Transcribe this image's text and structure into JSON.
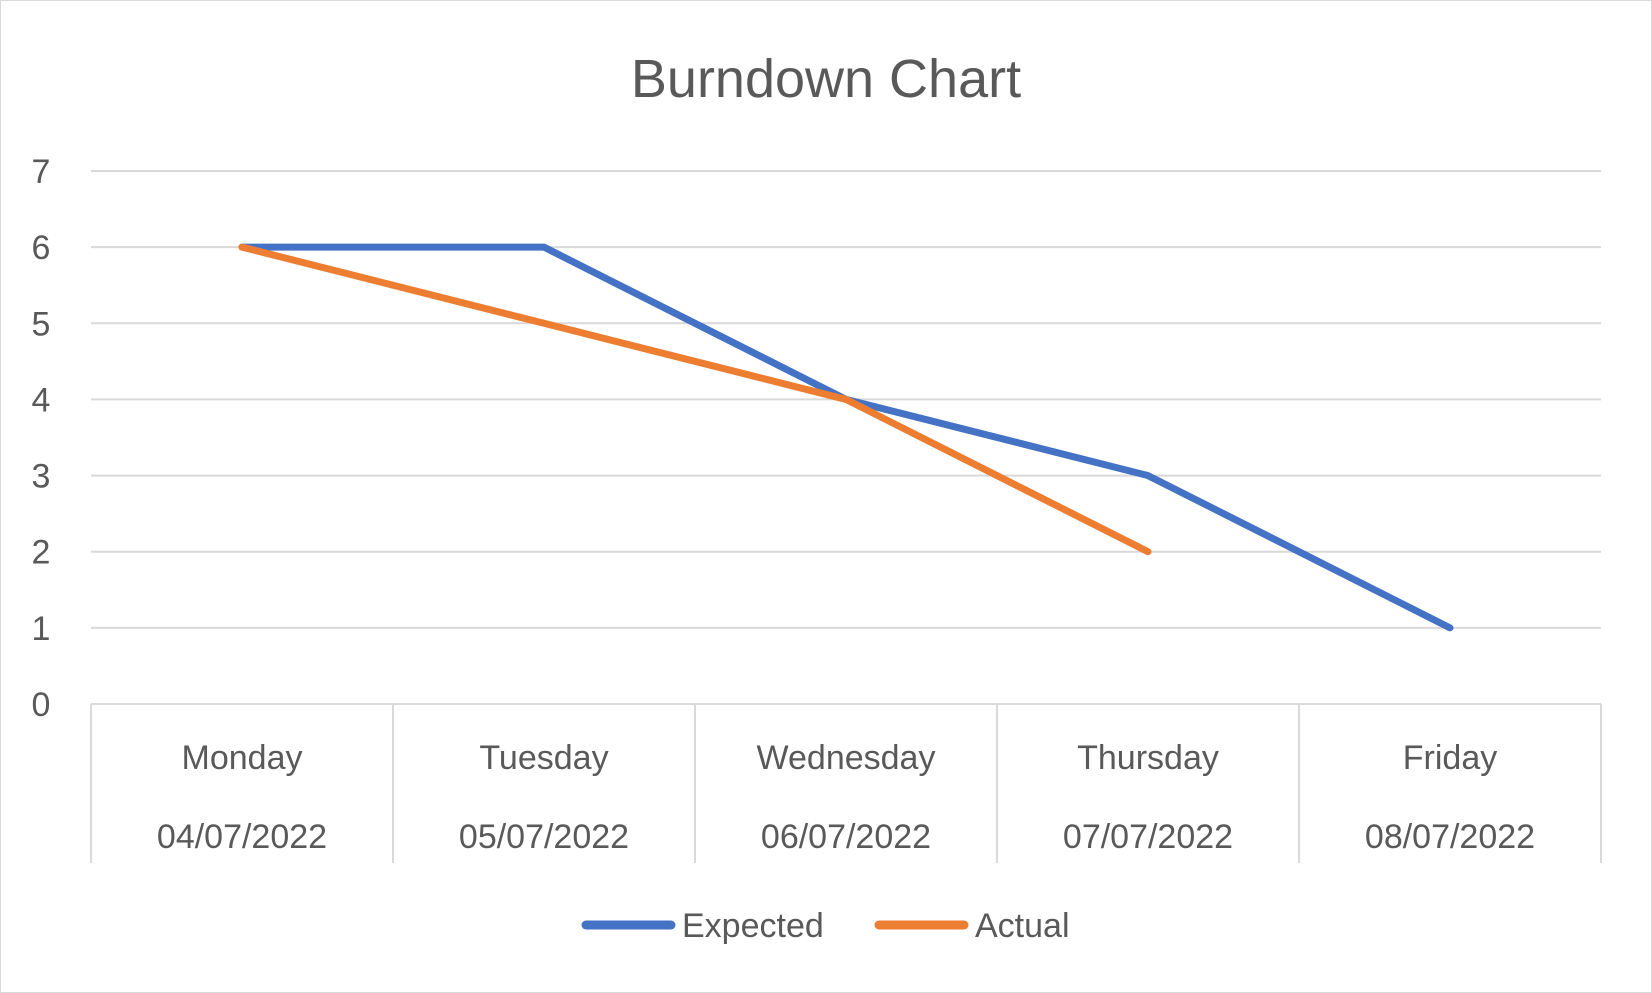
{
  "chart_data": {
    "type": "line",
    "title": "Burndown Chart",
    "xlabel": "",
    "ylabel": "",
    "ylim": [
      0,
      7
    ],
    "yticks": [
      0,
      1,
      2,
      3,
      4,
      5,
      6,
      7
    ],
    "grid": true,
    "legend_position": "bottom",
    "categories": [
      {
        "day": "Monday",
        "date": "04/07/2022"
      },
      {
        "day": "Tuesday",
        "date": "05/07/2022"
      },
      {
        "day": "Wednesday",
        "date": "06/07/2022"
      },
      {
        "day": "Thursday",
        "date": "07/07/2022"
      },
      {
        "day": "Friday",
        "date": "08/07/2022"
      }
    ],
    "series": [
      {
        "name": "Expected",
        "color": "#4472C4",
        "values": [
          6,
          6,
          4,
          3,
          1
        ]
      },
      {
        "name": "Actual",
        "color": "#ED7D31",
        "values": [
          6,
          5,
          4,
          2,
          null
        ]
      }
    ]
  }
}
